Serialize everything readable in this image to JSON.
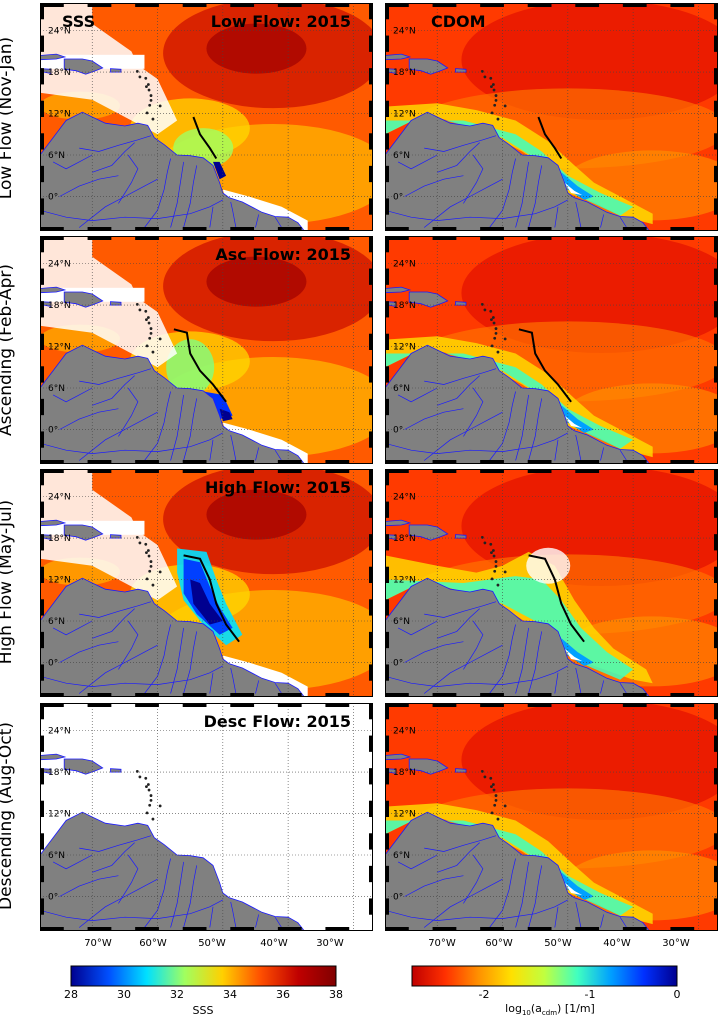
{
  "figure": {
    "columns": [
      "SSS",
      "CDOM"
    ],
    "rows": [
      {
        "row_label": "Low Flow (Nov-Jan)",
        "panel_title": "Low Flow: 2015"
      },
      {
        "row_label": "Ascending (Feb-Apr)",
        "panel_title": "Asc Flow: 2015"
      },
      {
        "row_label": "High Flow (May-Jul)",
        "panel_title": "High Flow: 2015"
      },
      {
        "row_label": "Descending (Aug-Oct)",
        "panel_title": "Desc Flow: 2015"
      }
    ],
    "latitude_ticks": [
      "24°N",
      "18°N",
      "12°N",
      "6°N",
      "0°"
    ],
    "longitude_ticks": [
      "70°W",
      "60°W",
      "50°W",
      "40°W",
      "30°W"
    ],
    "sss_colorbar": {
      "label": "SSS",
      "min": 28,
      "max": 38,
      "ticks": [
        "28",
        "30",
        "32",
        "34",
        "36",
        "38"
      ],
      "colors": [
        "#00008f",
        "#0050ff",
        "#00e0ff",
        "#a0ff60",
        "#ffd000",
        "#ff5000",
        "#c00000",
        "#800000"
      ]
    },
    "cdom_colorbar": {
      "label_base": "log",
      "label_sub1": "10",
      "label_mid": "(a",
      "label_sub2": "cdm",
      "label_end": ") [1/m]",
      "min": -2.5,
      "max": 0,
      "ticks": [
        "-2",
        "-1",
        "0"
      ],
      "colors": [
        "#c00000",
        "#ff3000",
        "#ff9000",
        "#ffe000",
        "#c0ff40",
        "#40ffc0",
        "#00a0ff",
        "#0030ff",
        "#00008f"
      ]
    },
    "land_color": "#808080",
    "river_color": "#1a1aff",
    "plume_contour_color": "#000000",
    "missing_data_color": "#ffffff"
  }
}
